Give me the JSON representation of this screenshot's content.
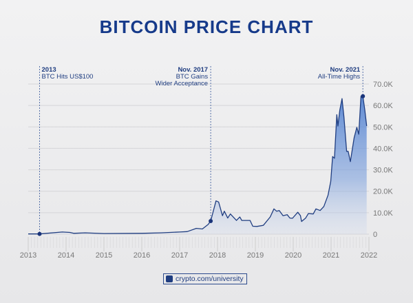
{
  "chart_data": {
    "type": "area",
    "title": "BITCOIN PRICE CHART",
    "xlabel": "",
    "ylabel": "",
    "xlim": [
      2013,
      2022
    ],
    "ylim": [
      0,
      70000
    ],
    "grid": true,
    "x_ticks": [
      "2013",
      "2014",
      "2015",
      "2016",
      "2017",
      "2018",
      "2019",
      "2020",
      "2021",
      "2022"
    ],
    "y_ticks": [
      "0",
      "10.0K",
      "20.0K",
      "30.0K",
      "40.0K",
      "50.0K",
      "60.0K",
      "70.0K"
    ],
    "y_tick_values": [
      0,
      10000,
      20000,
      30000,
      40000,
      50000,
      60000,
      70000
    ],
    "series": [
      {
        "color": "#1f3d80",
        "x": [
          2013.0,
          2013.3,
          2013.9,
          2014.1,
          2014.2,
          2014.5,
          2015.0,
          2016.0,
          2016.5,
          2017.0,
          2017.2,
          2017.44,
          2017.6,
          2017.75,
          2017.82,
          2017.96,
          2018.03,
          2018.13,
          2018.18,
          2018.27,
          2018.34,
          2018.5,
          2018.59,
          2018.64,
          2018.86,
          2018.93,
          2019.04,
          2019.21,
          2019.39,
          2019.49,
          2019.56,
          2019.63,
          2019.73,
          2019.84,
          2019.91,
          2019.98,
          2020.12,
          2020.19,
          2020.22,
          2020.33,
          2020.4,
          2020.53,
          2020.6,
          2020.71,
          2020.81,
          2020.92,
          2020.99,
          2021.04,
          2021.09,
          2021.15,
          2021.18,
          2021.23,
          2021.29,
          2021.34,
          2021.41,
          2021.45,
          2021.51,
          2021.61,
          2021.68,
          2021.73,
          2021.79,
          2021.84,
          2021.89,
          2021.94
        ],
        "y": [
          100,
          100,
          1000,
          800,
          400,
          600,
          300,
          400,
          600,
          1000,
          1200,
          2700,
          2400,
          4500,
          6100,
          15500,
          15000,
          8600,
          10700,
          7500,
          9400,
          6400,
          8000,
          6400,
          6400,
          3700,
          3600,
          4100,
          8000,
          11800,
          10700,
          11000,
          8600,
          9100,
          7500,
          7400,
          10200,
          8600,
          5900,
          7500,
          9600,
          9400,
          11800,
          11000,
          12900,
          18200,
          24600,
          36200,
          35400,
          55700,
          50400,
          57900,
          63200,
          54600,
          38600,
          38600,
          33800,
          45000,
          49800,
          46600,
          64300,
          64300,
          57900,
          50400
        ]
      }
    ],
    "annotations": [
      {
        "x": 2013.3,
        "y": 100,
        "title": "2013",
        "text": [
          "BTC Hits US$100"
        ]
      },
      {
        "x": 2017.82,
        "y": 6100,
        "title": "Nov. 2017",
        "text": [
          "BTC Gains",
          "Wider Acceptance"
        ]
      },
      {
        "x": 2021.84,
        "y": 64300,
        "title": "Nov. 2021",
        "text": [
          "All-Time Highs"
        ]
      }
    ]
  },
  "footer": {
    "label": "crypto.com/university",
    "icon": "crypto-com-logo-icon"
  }
}
